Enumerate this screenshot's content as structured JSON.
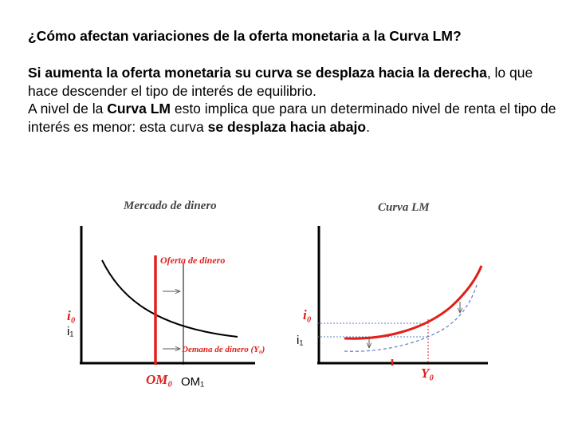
{
  "question": "¿Cómo afectan variaciones de la oferta monetaria a la Curva LM?",
  "paragraph1": {
    "part1_bold": "Si aumenta la oferta monetaria su curva se desplaza hacia la derecha",
    "part2": ", lo que hace descender el tipo de interés de equilibrio."
  },
  "paragraph2": {
    "part1": "A nivel de la ",
    "part2_bold": "Curva LM",
    "part3": " esto implica que para un determinado nivel de renta el tipo de interés es menor: esta curva ",
    "part4_bold": "se desplaza hacia abajo",
    "part5": "."
  },
  "money_market": {
    "title": "Mercado de dinero",
    "supply_label": "Oferta de dinero",
    "demand_label": "Demana de dinero (Y₀)",
    "i0_label": "i₀",
    "i1_label": "i₁",
    "om0_label": "OM₀",
    "om1_label": "OM₁"
  },
  "lm_curve": {
    "title": "Curva LM",
    "i0_label": "i₀",
    "i1_label": "i₁",
    "y0_label": "Y₀"
  },
  "colors": {
    "red": "#e0201b",
    "blue_dash": "#5a7fbf",
    "axis": "#000000"
  }
}
